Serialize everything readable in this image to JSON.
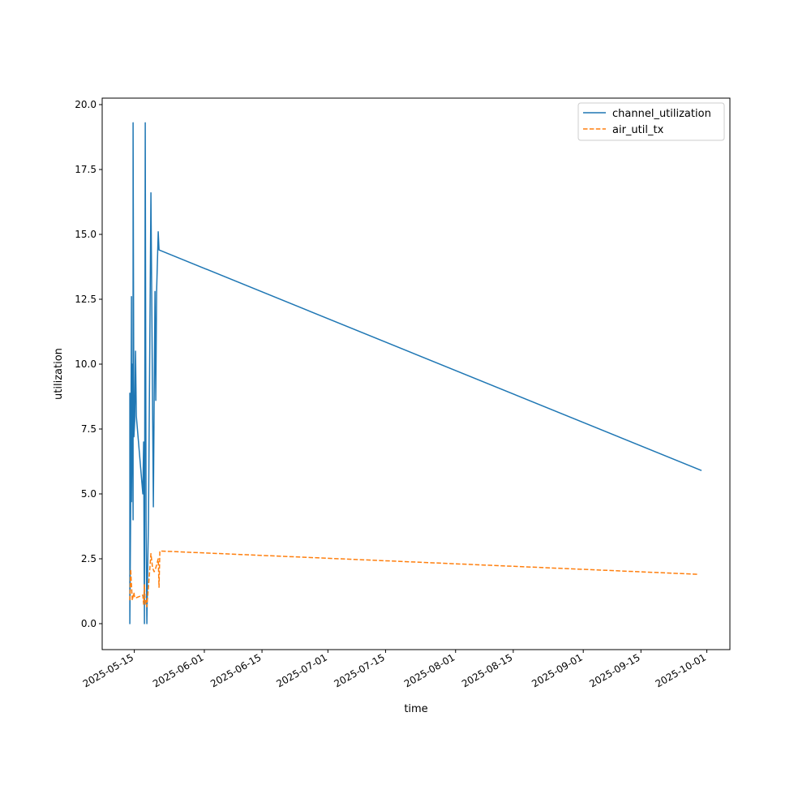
{
  "chart_data": {
    "type": "line",
    "title": "",
    "xlabel": "time",
    "ylabel": "utilization",
    "x_origin": "2025-05-15",
    "x_unit": "days since x_origin",
    "xlim": [
      -7.8,
      144.6
    ],
    "ylim": [
      -1.0,
      20.25
    ],
    "grid": false,
    "legend_position": "top-right",
    "x_ticks": [
      {
        "value": 0,
        "label": "2025-05-15"
      },
      {
        "value": 17,
        "label": "2025-06-01"
      },
      {
        "value": 31,
        "label": "2025-06-15"
      },
      {
        "value": 47,
        "label": "2025-07-01"
      },
      {
        "value": 61,
        "label": "2025-07-15"
      },
      {
        "value": 78,
        "label": "2025-08-01"
      },
      {
        "value": 92,
        "label": "2025-08-15"
      },
      {
        "value": 109,
        "label": "2025-09-01"
      },
      {
        "value": 123,
        "label": "2025-09-15"
      },
      {
        "value": 139,
        "label": "2025-10-01"
      }
    ],
    "y_ticks": [
      {
        "value": 0,
        "label": "0.0"
      },
      {
        "value": 2.5,
        "label": "2.5"
      },
      {
        "value": 5,
        "label": "5.0"
      },
      {
        "value": 7.5,
        "label": "7.5"
      },
      {
        "value": 10,
        "label": "10.0"
      },
      {
        "value": 12.5,
        "label": "12.5"
      },
      {
        "value": 15,
        "label": "15.0"
      },
      {
        "value": 17.5,
        "label": "17.5"
      },
      {
        "value": 20,
        "label": "20.0"
      }
    ],
    "series": [
      {
        "name": "channel_utilization",
        "color": "#1f77b4",
        "dash": "solid",
        "x": [
          -1.08,
          -1.08,
          -0.89,
          -0.69,
          -0.69,
          -0.49,
          -0.3,
          -0.3,
          -0.1,
          0.1,
          0.3,
          0.49,
          2.07,
          2.26,
          2.46,
          2.66,
          2.85,
          3.05,
          3.25,
          3.44,
          4.04,
          4.63,
          5.02,
          5.22,
          5.41,
          5.81,
          6.0,
          137.7
        ],
        "y": [
          8.9,
          0.0,
          4.4,
          12.6,
          4.7,
          10.0,
          4.0,
          19.3,
          7.2,
          7.8,
          10.5,
          8.0,
          5.0,
          7.0,
          0.0,
          19.3,
          4.0,
          0.0,
          2.2,
          4.0,
          16.6,
          4.5,
          12.8,
          8.6,
          12.8,
          15.1,
          14.4,
          5.9
        ]
      },
      {
        "name": "air_util_tx",
        "color": "#ff7f0e",
        "dash": "dashed",
        "x": [
          -1.08,
          -0.89,
          -0.69,
          -0.49,
          -0.1,
          0.1,
          0.49,
          2.07,
          2.26,
          2.46,
          2.66,
          2.85,
          3.05,
          3.25,
          3.64,
          4.04,
          4.43,
          4.82,
          5.22,
          5.81,
          6.0,
          6.2,
          137.1
        ],
        "y": [
          0.9,
          2.1,
          1.5,
          0.9,
          1.2,
          1.0,
          1.0,
          1.1,
          0.75,
          1.5,
          0.75,
          0.9,
          0.65,
          1.05,
          1.85,
          2.7,
          2.15,
          2.0,
          2.15,
          2.5,
          1.4,
          2.8,
          1.9
        ]
      }
    ]
  }
}
